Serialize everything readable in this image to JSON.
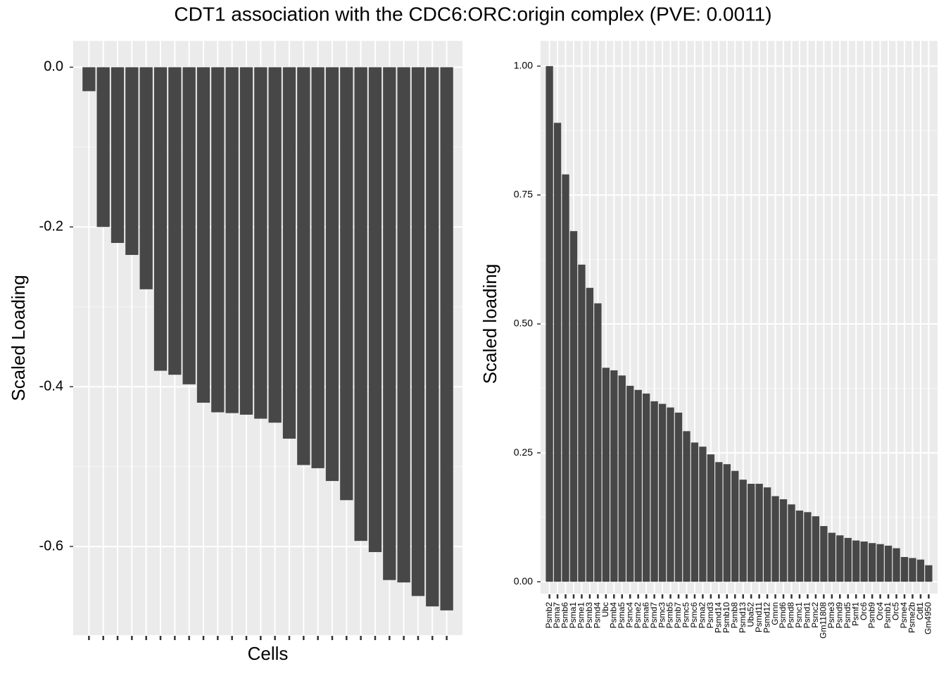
{
  "title": "CDT1 association with the CDC6:ORC:origin complex (PVE: 0.0011)",
  "chart_data": [
    {
      "type": "bar",
      "x_label": "Cells",
      "y_label": "Scaled Loading",
      "color": "#474747",
      "grid": true,
      "categories": [
        null,
        null,
        null,
        null,
        null,
        null,
        null,
        null,
        null,
        null,
        null,
        null,
        null,
        null,
        null,
        null,
        null,
        null,
        null,
        null,
        null,
        null,
        null,
        null,
        null,
        null
      ],
      "values": [
        -0.03,
        -0.2,
        -0.22,
        -0.235,
        -0.278,
        -0.38,
        -0.385,
        -0.397,
        -0.42,
        -0.432,
        -0.433,
        -0.435,
        -0.44,
        -0.445,
        -0.465,
        -0.498,
        -0.502,
        -0.518,
        -0.542,
        -0.593,
        -0.607,
        -0.642,
        -0.645,
        -0.662,
        -0.675,
        -0.68
      ],
      "ylim": [
        -0.711,
        0.033
      ],
      "yticks": [
        {
          "value": 0,
          "label": "0.0"
        },
        -0.2,
        -0.4,
        -0.6
      ]
    },
    {
      "type": "bar",
      "y_label": "Scaled loading",
      "color": "#474747",
      "grid": true,
      "categories": [
        "Psmb2",
        "Psma7",
        "Psmb6",
        "Psma1",
        "Psme1",
        "Psmb3",
        "Psmd4",
        "Ubc",
        "Psmb4",
        "Psma5",
        "Psmc4",
        "Psme2",
        "Psma6",
        "Psmd7",
        "Psmc3",
        "Psmb5",
        "Psmb7",
        "Psmc5",
        "Psmc6",
        "Psma2",
        "Psmd3",
        "Psmd14",
        "Psmb10",
        "Psmb8",
        "Psmd13",
        "Uba52",
        "Psmd11",
        "Psmd12",
        "Gmnn",
        "Psmd6",
        "Psmd8",
        "Psmc1",
        "Psmd1",
        "Psmc2",
        "Gm11808",
        "Psme3",
        "Psmd9",
        "Psmd5",
        "Psmf1",
        "Orc6",
        "Psmb9",
        "Orc4",
        "Psmb1",
        "Orc5",
        "Psme4",
        "Psme2b",
        "Cdt1",
        "Gm4950"
      ],
      "values": [
        1.0,
        0.89,
        0.79,
        0.68,
        0.615,
        0.57,
        0.54,
        0.415,
        0.41,
        0.4,
        0.38,
        0.372,
        0.365,
        0.35,
        0.345,
        0.338,
        0.328,
        0.292,
        0.27,
        0.262,
        0.247,
        0.232,
        0.228,
        0.215,
        0.198,
        0.19,
        0.19,
        0.183,
        0.166,
        0.16,
        0.15,
        0.138,
        0.135,
        0.127,
        0.108,
        0.095,
        0.09,
        0.085,
        0.08,
        0.078,
        0.075,
        0.073,
        0.07,
        0.065,
        0.048,
        0.046,
        0.043,
        0.032
      ],
      "ylim": [
        -0.023,
        1.049
      ],
      "yticks": [
        {
          "value": 0,
          "label": "0.00"
        },
        {
          "value": 0.25,
          "label": "0.25"
        },
        {
          "value": 0.5,
          "label": "0.50"
        },
        {
          "value": 0.75,
          "label": "0.75"
        },
        {
          "value": 1,
          "label": "1.00"
        }
      ]
    }
  ]
}
